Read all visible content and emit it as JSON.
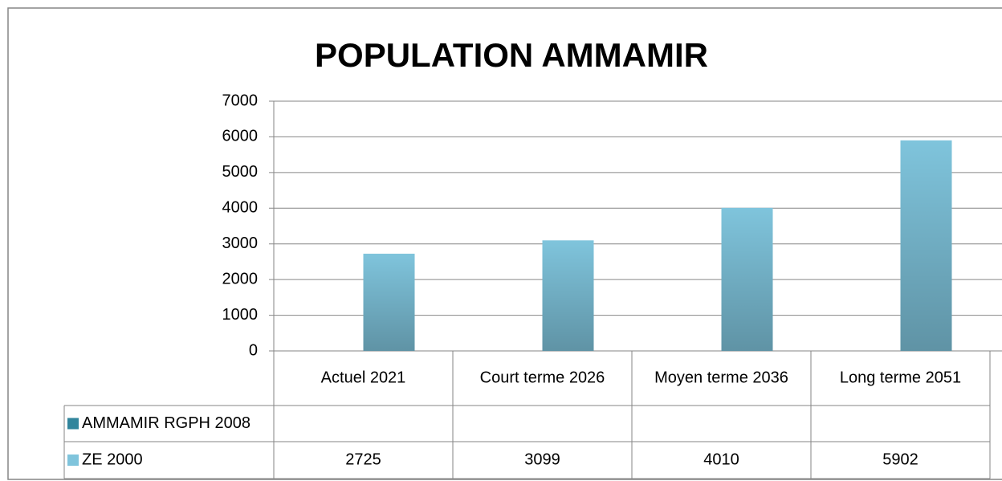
{
  "chart_data": {
    "type": "bar",
    "title": "POPULATION AMMAMIR",
    "categories": [
      "Actuel 2021",
      "Court terme 2026",
      "Moyen terme 2036",
      "Long terme 2051"
    ],
    "series": [
      {
        "name": "AMMAMIR RGPH 2008",
        "color": "#31859c",
        "values": [
          null,
          null,
          null,
          null
        ]
      },
      {
        "name": "ZE 2000",
        "color": "#7fc4dc",
        "values": [
          2725,
          3099,
          4010,
          5902
        ]
      }
    ],
    "ylim": [
      0,
      7000
    ],
    "yticks": [
      0,
      1000,
      2000,
      3000,
      4000,
      5000,
      6000,
      7000
    ],
    "grid": true,
    "legend": "table"
  }
}
